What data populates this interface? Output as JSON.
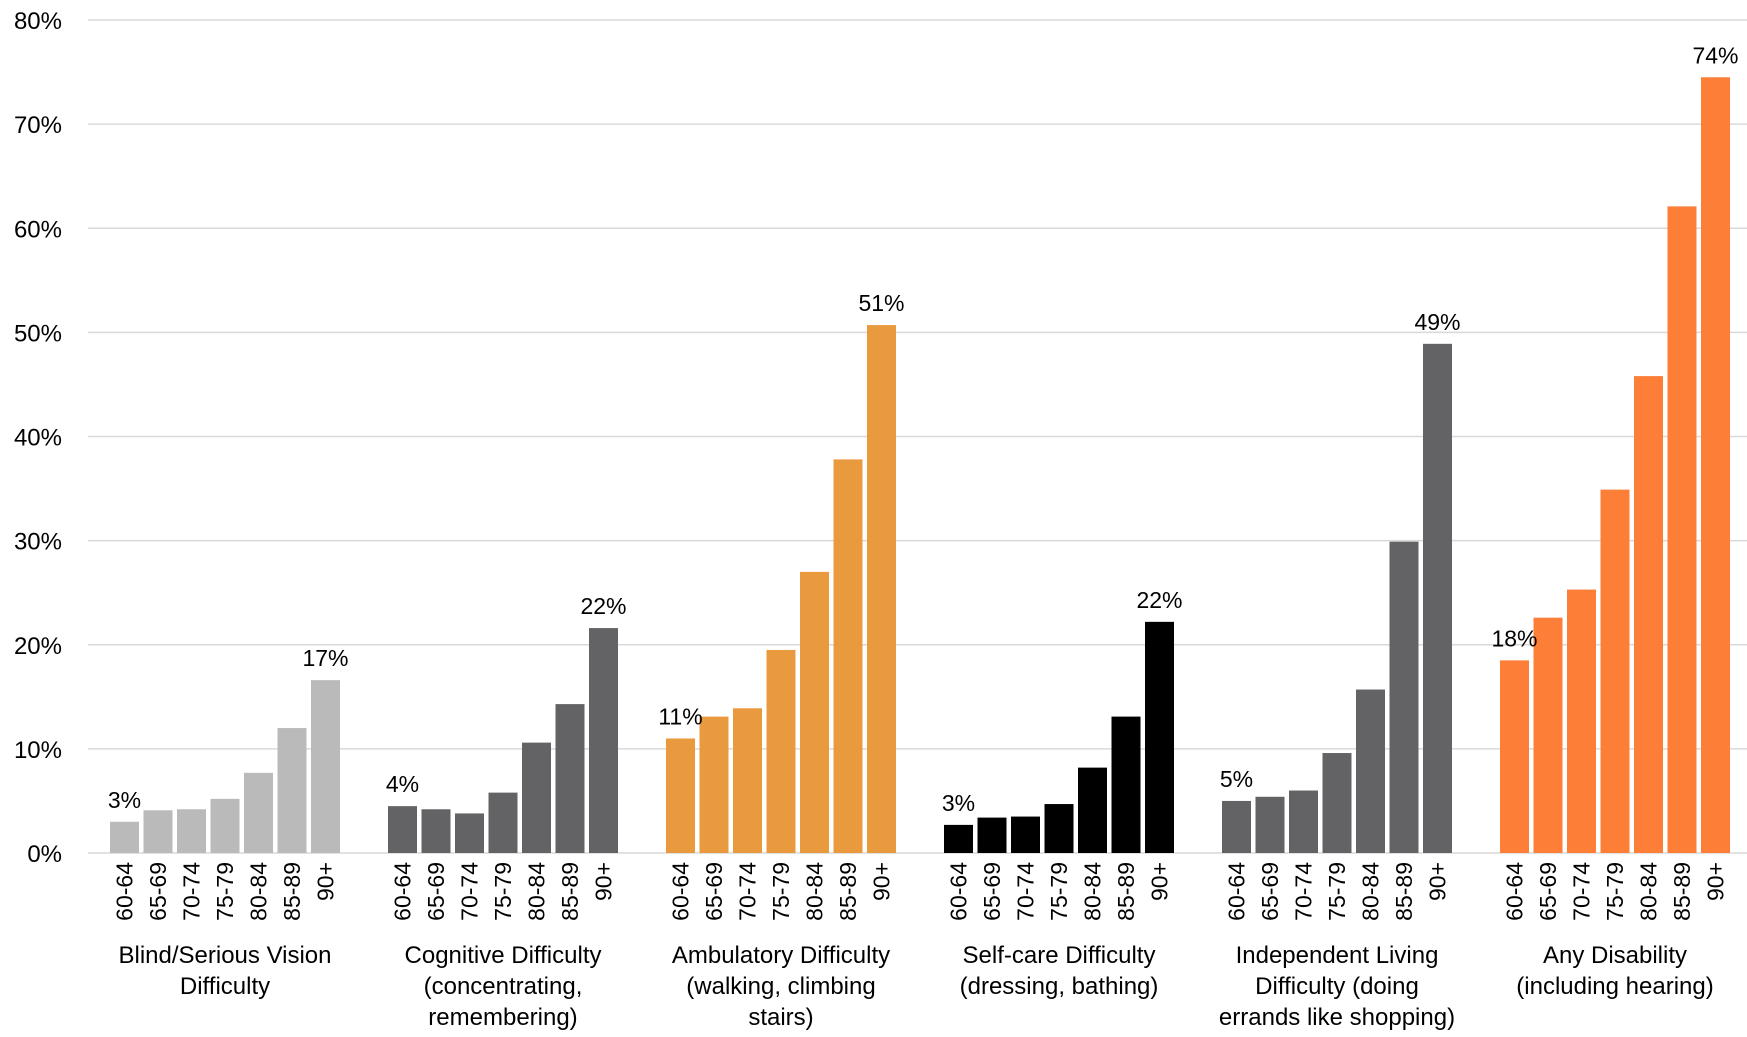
{
  "chart_data": {
    "type": "bar",
    "title": "",
    "xlabel": "",
    "ylabel": "",
    "ylim": [
      0,
      80
    ],
    "y_ticks": [
      "0%",
      "10%",
      "20%",
      "30%",
      "40%",
      "50%",
      "60%",
      "70%",
      "80%"
    ],
    "grid": true,
    "legend": "none",
    "age_categories": [
      "60-64",
      "65-69",
      "70-74",
      "75-79",
      "80-84",
      "85-89",
      "90+"
    ],
    "groups": [
      {
        "label_lines": [
          "Blind/Serious Vision",
          "Difficulty"
        ],
        "color": "#bababa",
        "values": [
          3.0,
          4.1,
          4.2,
          5.2,
          7.7,
          12.0,
          16.6
        ],
        "data_labels": [
          "3%",
          "",
          "",
          "",
          "",
          "",
          "17%"
        ]
      },
      {
        "label_lines": [
          "Cognitive Difficulty",
          "(concentrating,",
          "remembering)"
        ],
        "color": "#636366",
        "values": [
          4.5,
          4.2,
          3.8,
          5.8,
          10.6,
          14.3,
          21.6
        ],
        "data_labels": [
          "4%",
          "",
          "",
          "",
          "",
          "",
          "22%"
        ]
      },
      {
        "label_lines": [
          "Ambulatory Difficulty",
          "(walking, climbing",
          "stairs)"
        ],
        "color": "#e9993e",
        "values": [
          11.0,
          13.1,
          13.9,
          19.5,
          27.0,
          37.8,
          50.7
        ],
        "data_labels": [
          "11%",
          "",
          "",
          "",
          "",
          "",
          "51%"
        ]
      },
      {
        "label_lines": [
          "Self-care Difficulty",
          "(dressing, bathing)"
        ],
        "color": "#000000",
        "values": [
          2.7,
          3.4,
          3.5,
          4.7,
          8.2,
          13.1,
          22.2
        ],
        "data_labels": [
          "3%",
          "",
          "",
          "",
          "",
          "",
          "22%"
        ]
      },
      {
        "label_lines": [
          "Independent Living",
          "Difficulty (doing",
          "errands like shopping)"
        ],
        "color": "#636366",
        "values": [
          5.0,
          5.4,
          6.0,
          9.6,
          15.7,
          29.9,
          48.9
        ],
        "data_labels": [
          "5%",
          "",
          "",
          "",
          "",
          "",
          "49%"
        ]
      },
      {
        "label_lines": [
          "Any Disability",
          "(including hearing)"
        ],
        "color": "#fd7e37",
        "values": [
          18.5,
          22.6,
          25.3,
          34.9,
          45.8,
          62.1,
          74.5
        ],
        "data_labels": [
          "18%",
          "",
          "",
          "",
          "",
          "",
          "74%"
        ]
      }
    ]
  }
}
